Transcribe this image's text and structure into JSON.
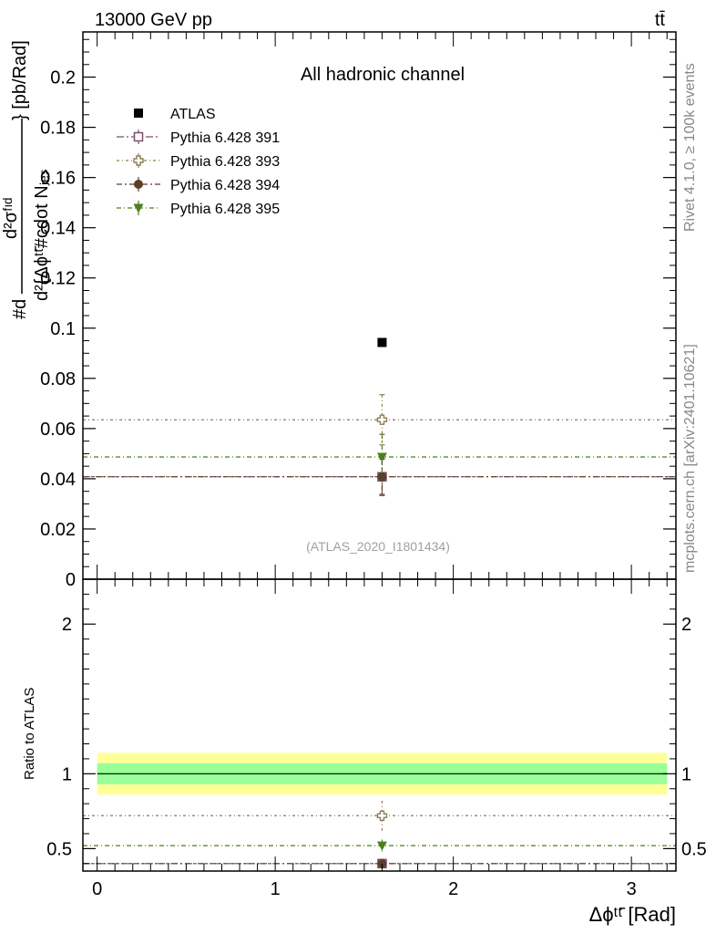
{
  "header": {
    "energy_label": "13000 GeV pp",
    "process_label": "tt̄"
  },
  "side_labels": {
    "rivet": "Rivet 4.1.0, ≥ 100k events",
    "mcplots": "mcplots.cern.ch [arXiv:2401.10621]"
  },
  "colors": {
    "atlas": "#000000",
    "p391": "#7a4f67",
    "p393": "#8c7d55",
    "p394": "#5b3f2a",
    "p395": "#4c7f1c",
    "band_inner": "#99ff99",
    "band_outer": "#ffff99"
  },
  "chart_data": [
    {
      "type": "scatter",
      "panel": "main",
      "title": "All hadronic channel",
      "watermark": "(ATLAS_2020_I1801434)",
      "xlabel": "",
      "ylabel_parts": {
        "numerator_prefix": "#d",
        "frac_top": "d²σᶠᶦᵈ",
        "frac_bottom": "d²{Δϕᵗᵗ̄#cdot Nⱼₑₛ",
        "unit": "} [pb/Rad]"
      },
      "xlim": [
        -0.08,
        3.25
      ],
      "ylim": [
        0,
        0.218
      ],
      "yticks": [
        0,
        0.02,
        0.04,
        0.06,
        0.08,
        0.1,
        0.12,
        0.14,
        0.16,
        0.18,
        0.2
      ],
      "ytick_labels": [
        "0",
        "0.02",
        "0.04",
        "0.06",
        "0.08",
        "0.1",
        "0.12",
        "0.14",
        "0.16",
        "0.18",
        "0.2"
      ],
      "legend": [
        "ATLAS",
        "Pythia 6.428 391",
        "Pythia 6.428 393",
        "Pythia 6.428 394",
        "Pythia 6.428 395"
      ],
      "legend_position": "top-left",
      "series": [
        {
          "name": "ATLAS",
          "marker": "square-filled",
          "x": [
            1.6
          ],
          "y": [
            0.0943
          ],
          "err": [
            0.0
          ]
        },
        {
          "name": "Pythia 6.428 391",
          "marker": "square-open",
          "x": [
            1.6
          ],
          "y": [
            0.0408
          ],
          "err": [
            0.0075
          ],
          "line_y": 0.0408
        },
        {
          "name": "Pythia 6.428 393",
          "marker": "cross-open",
          "x": [
            1.6
          ],
          "y": [
            0.0635
          ],
          "err": [
            0.01
          ],
          "line_y": 0.0635
        },
        {
          "name": "Pythia 6.428 394",
          "marker": "circle-filled",
          "x": [
            1.6
          ],
          "y": [
            0.0408
          ],
          "err": [
            0.007
          ],
          "line_y": 0.0408
        },
        {
          "name": "Pythia 6.428 395",
          "marker": "triangle-down-filled",
          "x": [
            1.6
          ],
          "y": [
            0.0487
          ],
          "err": [
            0.009
          ],
          "line_y": 0.0487
        }
      ]
    },
    {
      "type": "scatter",
      "panel": "ratio",
      "ylabel": "Ratio to ATLAS",
      "xlabel": "Δϕᵗᵗ̄ [Rad]",
      "xlim": [
        -0.08,
        3.25
      ],
      "ylim": [
        0.35,
        2.3
      ],
      "xticks": [
        0,
        1,
        2,
        3
      ],
      "xtick_labels": [
        "0",
        "1",
        "2",
        "3"
      ],
      "yticks": [
        0.5,
        1,
        2
      ],
      "ytick_labels": [
        "0.5",
        "1",
        "2"
      ],
      "band_inner": [
        0.93,
        1.07
      ],
      "band_outer": [
        0.86,
        1.14
      ],
      "series": [
        {
          "name": "ATLAS",
          "y": 1.0
        },
        {
          "name": "Pythia 6.428 391",
          "marker": "square-open",
          "x": [
            1.6
          ],
          "y": [
            0.4
          ],
          "err": [
            0.01
          ]
        },
        {
          "name": "Pythia 6.428 393",
          "marker": "cross-open",
          "x": [
            1.6
          ],
          "y": [
            0.72
          ],
          "err": [
            0.1
          ]
        },
        {
          "name": "Pythia 6.428 394",
          "marker": "circle-filled",
          "x": [
            1.6
          ],
          "y": [
            0.4
          ],
          "err": [
            0.01
          ]
        },
        {
          "name": "Pythia 6.428 395",
          "marker": "triangle-down-filled",
          "x": [
            1.6
          ],
          "y": [
            0.52
          ],
          "err": [
            0.04
          ]
        }
      ]
    }
  ]
}
